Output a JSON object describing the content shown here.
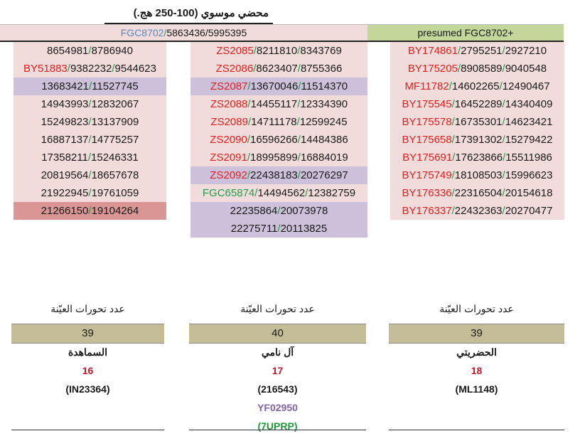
{
  "title": "محضي موسوي (100-250 هج.)",
  "banner_left": {
    "snp": "FGC8702",
    "pos": "5863436/5995395"
  },
  "banner_right": "presumed FGC8702+",
  "col_left": [
    {
      "snp": "",
      "pos": "8654981/8786940",
      "bg": "pink"
    },
    {
      "snp": "BY51883",
      "pos": "9382232/9544623",
      "bg": "pink"
    },
    {
      "snp": "",
      "pos": "13683421/11527745",
      "bg": "lav"
    },
    {
      "snp": "",
      "pos": "14943993/12832067",
      "bg": "pink"
    },
    {
      "snp": "",
      "pos": "15249823/13137909",
      "bg": "pink"
    },
    {
      "snp": "",
      "pos": "16887137/14775257",
      "bg": "pink"
    },
    {
      "snp": "",
      "pos": "17358211/15246331",
      "bg": "pink"
    },
    {
      "snp": "",
      "pos": "20819564/18657678",
      "bg": "pink"
    },
    {
      "snp": "",
      "pos": "21922945/19761059",
      "bg": "pink"
    },
    {
      "snp": "",
      "pos": "21266150/19104264",
      "bg": "dark"
    }
  ],
  "col_mid": [
    {
      "snp": "ZS2085",
      "pos": "8211810/8343769",
      "bg": "pink",
      "color": "red"
    },
    {
      "snp": "ZS2086",
      "pos": "8623407/8755366",
      "bg": "pink",
      "color": "red"
    },
    {
      "snp": "ZS2087",
      "pos": "13670046/11514370",
      "bg": "lav",
      "color": "red"
    },
    {
      "snp": "ZS2088",
      "pos": "14455117/12334390",
      "bg": "pink",
      "color": "red"
    },
    {
      "snp": "ZS2089",
      "pos": "14711178/12599245",
      "bg": "pink",
      "color": "red"
    },
    {
      "snp": "ZS2090",
      "pos": "16596266/14484386",
      "bg": "pink",
      "color": "red"
    },
    {
      "snp": "ZS2091",
      "pos": "18995899/16884019",
      "bg": "pink",
      "color": "red"
    },
    {
      "snp": "ZS2092",
      "pos": "22438183/20276297",
      "bg": "lav",
      "color": "red"
    },
    {
      "snp": "FGC65874",
      "pos": "14494562/12382759",
      "bg": "pink",
      "color": "green"
    },
    {
      "snp": "",
      "pos": "22235864/20073978",
      "bg": "lav",
      "color": ""
    },
    {
      "snp": "",
      "pos": "22275711/20113825",
      "bg": "lav",
      "color": ""
    }
  ],
  "col_right": [
    {
      "snp": "BY174861",
      "pos": "2795251/2927210",
      "bg": "pink"
    },
    {
      "snp": "BY175205",
      "pos": "8908589/9040548",
      "bg": "pink"
    },
    {
      "snp": "MF11782",
      "pos": "14602265/12490467",
      "bg": "pink"
    },
    {
      "snp": "BY175545",
      "pos": "16452289/14340409",
      "bg": "pink"
    },
    {
      "snp": "BY175578",
      "pos": "16735301/14623421",
      "bg": "pink"
    },
    {
      "snp": "BY175658",
      "pos": "17391302/15279422",
      "bg": "pink"
    },
    {
      "snp": "BY175691",
      "pos": "17623866/15511986",
      "bg": "pink"
    },
    {
      "snp": "BY175749",
      "pos": "18108503/15996623",
      "bg": "pink"
    },
    {
      "snp": "BY176336",
      "pos": "22316504/20154618",
      "bg": "pink"
    },
    {
      "snp": "BY176337",
      "pos": "22432363/20270477",
      "bg": "pink"
    }
  ],
  "samples": [
    {
      "label": "عدد تحورات العيّنة",
      "count": "39",
      "family": "السماهدة",
      "num": "16",
      "kit": "(IN23364)"
    },
    {
      "label": "عدد تحورات العيّنة",
      "count": "40",
      "family": "آل نامي",
      "num": "17",
      "kit": "(216543)",
      "extra1": "YF02950",
      "extra2": "(7UPRP)"
    },
    {
      "label": "عدد تحورات العيّنة",
      "count": "39",
      "family": "الحضريتي",
      "num": "18",
      "kit": "(ML1148)"
    }
  ]
}
